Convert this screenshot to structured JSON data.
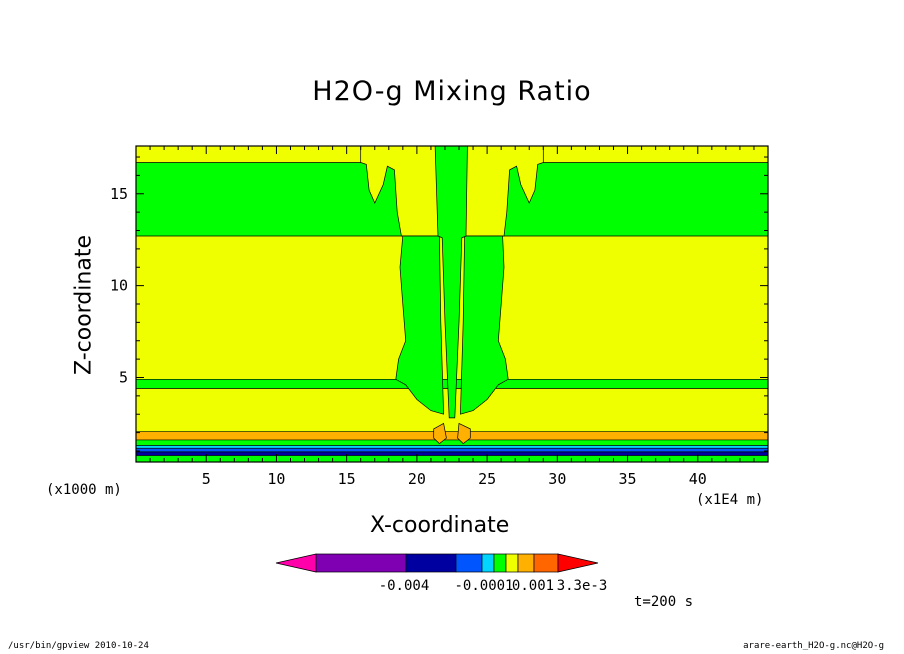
{
  "chart_data": {
    "type": "heatmap",
    "title": "H2O-g Mixing Ratio",
    "xlabel": "X-coordinate",
    "ylabel": "Z-coordinate",
    "x_unit_left": "(x1000 m)",
    "x_unit_right": "(x1E4 m)",
    "xlim": [
      0,
      45
    ],
    "ylim": [
      0.4,
      17.6
    ],
    "x_ticks": [
      5,
      10,
      15,
      20,
      25,
      30,
      35,
      40
    ],
    "y_ticks": [
      5,
      10,
      15
    ],
    "colorbar": {
      "colors": [
        "#ff00aa",
        "#7f00b2",
        "#0000a0",
        "#0055ff",
        "#00d4ff",
        "#00ff00",
        "#f0ff00",
        "#ffb000",
        "#ff6600",
        "#ff0000"
      ],
      "tick_labels": [
        "-0.004",
        "-0.0001",
        "0.001",
        "3.3e-3"
      ]
    },
    "bands": [
      {
        "zmin": 0.4,
        "zmax": 0.75,
        "color": "#00ff00"
      },
      {
        "zmin": 0.75,
        "zmax": 0.95,
        "color": "#0000a0"
      },
      {
        "zmin": 0.95,
        "zmax": 1.15,
        "color": "#0055ff"
      },
      {
        "zmin": 1.15,
        "zmax": 1.3,
        "color": "#00d4ff"
      },
      {
        "zmin": 1.3,
        "zmax": 1.6,
        "color": "#00ff00"
      },
      {
        "zmin": 1.6,
        "zmax": 2.05,
        "color": "#ffb000"
      },
      {
        "zmin": 2.05,
        "zmax": 4.4,
        "color": "#f0ff00"
      },
      {
        "zmin": 4.4,
        "zmax": 4.9,
        "color": "#00ff00"
      },
      {
        "zmin": 4.9,
        "zmax": 12.7,
        "color": "#f0ff00"
      },
      {
        "zmin": 12.7,
        "zmax": 16.7,
        "color": "#00ff00"
      },
      {
        "zmin": 16.7,
        "zmax": 17.6,
        "color": "#f0ff00"
      }
    ]
  },
  "time_label": "t=200 s",
  "footer": {
    "left": "/usr/bin/gpview  2010-10-24",
    "right": "arare-earth_H2O-g.nc@H2O-g"
  }
}
